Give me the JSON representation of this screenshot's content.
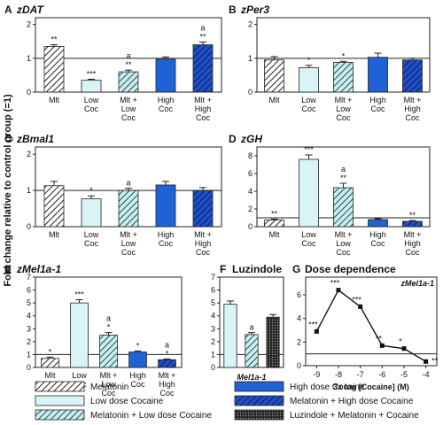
{
  "ylabel": "Fold change relative to control group (=1)",
  "colors": {
    "mlt": "#ffffff",
    "low": "#d8f4f6",
    "mltlow": "#c9eef0",
    "high": "#1f62d8",
    "mlthigh": "#1036a8",
    "luz": "#333333"
  },
  "legend": [
    {
      "key": "mlt",
      "label": "Melatonin",
      "pattern": "hatch"
    },
    {
      "key": "high",
      "label": "High dose Cocaine",
      "pattern": "solid"
    },
    {
      "key": "low",
      "label": "Low dose Cocaine",
      "pattern": "solid"
    },
    {
      "key": "mlthigh",
      "label": "Melatonin + High dose Cocaine",
      "pattern": "hatch"
    },
    {
      "key": "mltlow",
      "label": "Melatonin + Low dose Cocaine",
      "pattern": "hatch"
    },
    {
      "key": "luz",
      "label": "Luzindole + Melatonin + Cocaine",
      "pattern": "dots"
    }
  ],
  "chart_data": [
    {
      "panel": "A",
      "title": "zDAT",
      "type": "bar",
      "yticks": [
        0,
        1,
        2
      ],
      "ylim": [
        0,
        2.2
      ],
      "categories": [
        [
          "Mlt"
        ],
        [
          "Low",
          "Coc"
        ],
        [
          "Mlt +",
          "Low",
          "Coc"
        ],
        [
          "High",
          "Coc"
        ],
        [
          "Mlt +",
          "High",
          "Coc"
        ]
      ],
      "keys": [
        "mlt",
        "low",
        "mltlow",
        "high",
        "mlthigh"
      ],
      "values": [
        1.35,
        0.35,
        0.6,
        0.97,
        1.4
      ],
      "errors": [
        0.05,
        0.03,
        0.05,
        0.07,
        0.08
      ],
      "labels": [
        [
          "**"
        ],
        [
          "***"
        ],
        [
          "**",
          "a"
        ],
        [],
        [
          "**",
          "a"
        ]
      ]
    },
    {
      "panel": "B",
      "title": "zPer3",
      "type": "bar",
      "yticks": [
        0,
        1,
        2
      ],
      "ylim": [
        0,
        2.2
      ],
      "categories": [
        [
          "Mlt"
        ],
        [
          "Low",
          "Coc"
        ],
        [
          "Mlt +",
          "Low",
          "Coc"
        ],
        [
          "High",
          "Coc"
        ],
        [
          "Mlt +",
          "High",
          "Coc"
        ]
      ],
      "keys": [
        "mlt",
        "low",
        "mltlow",
        "high",
        "mlthigh"
      ],
      "values": [
        0.95,
        0.72,
        0.88,
        1.03,
        0.95
      ],
      "errors": [
        0.1,
        0.07,
        0.03,
        0.12,
        0.05
      ],
      "labels": [
        [],
        [
          "*"
        ],
        [
          "*"
        ],
        [],
        []
      ]
    },
    {
      "panel": "C",
      "title": "zBmal1",
      "type": "bar",
      "yticks": [
        0,
        1,
        2
      ],
      "ylim": [
        0,
        2.2
      ],
      "categories": [
        [
          "Mlt"
        ],
        [
          "Low",
          "Coc"
        ],
        [
          "Mlt +",
          "Low",
          "Coc"
        ],
        [
          "High",
          "Coc"
        ],
        [
          "Mlt +",
          "High",
          "Coc"
        ]
      ],
      "keys": [
        "mlt",
        "low",
        "mltlow",
        "high",
        "mlthigh"
      ],
      "values": [
        1.13,
        0.77,
        1.0,
        1.15,
        1.0
      ],
      "errors": [
        0.12,
        0.08,
        0.06,
        0.1,
        0.08
      ],
      "labels": [
        [],
        [
          "*"
        ],
        [
          "a"
        ],
        [],
        []
      ]
    },
    {
      "panel": "D",
      "title": "zGH",
      "type": "bar",
      "yticks": [
        0,
        2,
        4,
        6,
        8
      ],
      "ylim": [
        0,
        9
      ],
      "categories": [
        [
          "Mlt"
        ],
        [
          "Low",
          "Coc"
        ],
        [
          "Mlt +",
          "Low",
          "Coc"
        ],
        [
          "High",
          "Coc"
        ],
        [
          "Mlt +",
          "High",
          "Coc"
        ]
      ],
      "keys": [
        "mlt",
        "low",
        "mltlow",
        "high",
        "mlthigh"
      ],
      "values": [
        0.75,
        7.6,
        4.4,
        0.8,
        0.6
      ],
      "errors": [
        0.1,
        0.5,
        0.5,
        0.1,
        0.1
      ],
      "labels": [
        [
          "**"
        ],
        [
          "***"
        ],
        [
          "**",
          "a"
        ],
        [],
        [
          "**"
        ]
      ]
    },
    {
      "panel": "E",
      "title": "zMel1a-1",
      "type": "bar",
      "yticks": [
        0,
        1,
        2,
        3,
        4,
        5,
        6,
        7
      ],
      "ylim": [
        0,
        7
      ],
      "categories": [
        [
          "Mlt"
        ],
        [
          "Low",
          "Coc"
        ],
        [
          "Mlt +",
          "Low",
          "Coc"
        ],
        [
          "High",
          "Coc"
        ],
        [
          "Mlt +",
          "High",
          "Coc"
        ]
      ],
      "keys": [
        "mlt",
        "low",
        "mltlow",
        "high",
        "mlthigh"
      ],
      "values": [
        0.7,
        5.0,
        2.5,
        1.2,
        0.6
      ],
      "errors": [
        0.1,
        0.25,
        0.2,
        0.08,
        0.06
      ],
      "labels": [
        [
          "*"
        ],
        [
          "***"
        ],
        [
          "*",
          "a"
        ],
        [
          "*"
        ],
        [
          "*",
          "a"
        ]
      ]
    },
    {
      "panel": "F",
      "title": "Luzindole",
      "type": "bar",
      "yticks": [
        0,
        1,
        2,
        3,
        4,
        5,
        6,
        7
      ],
      "ylim": [
        0,
        7
      ],
      "xlabel": "Mel1a-1",
      "keys": [
        "low",
        "mltlow",
        "luz"
      ],
      "values": [
        4.9,
        2.55,
        3.9
      ],
      "errors": [
        0.25,
        0.15,
        0.2
      ],
      "labels": [
        [],
        [
          "a"
        ],
        []
      ]
    },
    {
      "panel": "G",
      "title": "Dose dependence",
      "subtitle": "zMel1a-1",
      "type": "line",
      "xlabel": "3x log [Cocaine] (M)",
      "x": [
        -9,
        -8,
        -7,
        -6,
        -5,
        -4
      ],
      "xticks": [
        "-9",
        "-8",
        "-7",
        "-6",
        "-5",
        "-4"
      ],
      "y": [
        2.9,
        6.4,
        5.0,
        1.7,
        1.45,
        0.35
      ],
      "errors": [
        0.1,
        0.15,
        0.15,
        0.1,
        0.08,
        0.05
      ],
      "yticks": [
        0,
        2,
        4,
        6
      ],
      "ylim": [
        0,
        7.5
      ],
      "labels": [
        [
          "***"
        ],
        [
          "***"
        ],
        [
          "***"
        ],
        [
          "**"
        ],
        [
          "*"
        ],
        [
          "**"
        ]
      ]
    }
  ]
}
